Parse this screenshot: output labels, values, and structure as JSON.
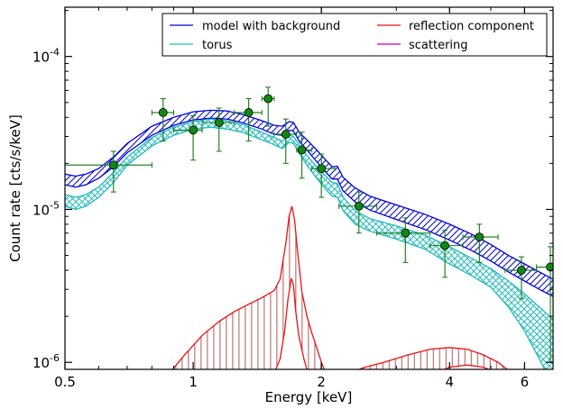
{
  "chart_data": {
    "type": "line",
    "xlabel": "Energy [keV]",
    "ylabel": "Count rate [cts/s/keV]",
    "xscale": "log",
    "yscale": "log",
    "xlim": [
      0.5,
      7.0
    ],
    "ylim": [
      9e-07,
      0.00021
    ],
    "x_ticks": [
      {
        "value": 0.5,
        "label": "0.5"
      },
      {
        "value": 1,
        "label": "1"
      },
      {
        "value": 2,
        "label": "2"
      },
      {
        "value": 4,
        "label": "4"
      },
      {
        "value": 6,
        "label": "6"
      }
    ],
    "y_ticks": [
      {
        "value": 1e-06,
        "base": "10",
        "exp": "-6"
      },
      {
        "value": 1e-05,
        "base": "10",
        "exp": "-5"
      },
      {
        "value": 0.0001,
        "base": "10",
        "exp": "-4"
      }
    ],
    "legend": {
      "placement": "top-right",
      "columns": 2,
      "entries": [
        {
          "label": "model with background",
          "color": "#0000dd"
        },
        {
          "label": "torus",
          "color": "#22bbbb"
        },
        {
          "label": "reflection component",
          "color": "#ee1111"
        },
        {
          "label": "scattering",
          "color": "#bb00bb"
        }
      ]
    },
    "bands": [
      {
        "name": "model with background",
        "color": "#0000dd",
        "hatch": "diagonal",
        "points": [
          [
            0.5,
            1.45e-05,
            1.7e-05
          ],
          [
            0.53,
            1.4e-05,
            1.65e-05
          ],
          [
            0.56,
            1.45e-05,
            1.7e-05
          ],
          [
            0.6,
            1.6e-05,
            1.85e-05
          ],
          [
            0.65,
            1.9e-05,
            2.2e-05
          ],
          [
            0.7,
            2.35e-05,
            2.7e-05
          ],
          [
            0.8,
            3.05e-05,
            3.5e-05
          ],
          [
            0.9,
            3.55e-05,
            4e-05
          ],
          [
            1.0,
            3.85e-05,
            4.35e-05
          ],
          [
            1.1,
            3.95e-05,
            4.45e-05
          ],
          [
            1.2,
            3.9e-05,
            4.4e-05
          ],
          [
            1.3,
            3.7e-05,
            4.2e-05
          ],
          [
            1.45,
            3.35e-05,
            3.8e-05
          ],
          [
            1.55,
            3.1e-05,
            3.55e-05
          ],
          [
            1.62,
            3.05e-05,
            3.5e-05
          ],
          [
            1.68,
            3.3e-05,
            3.75e-05
          ],
          [
            1.72,
            3.25e-05,
            3.7e-05
          ],
          [
            1.78,
            2.75e-05,
            3.15e-05
          ],
          [
            1.85,
            2.45e-05,
            2.85e-05
          ],
          [
            1.95,
            2.05e-05,
            2.45e-05
          ],
          [
            2.05,
            1.75e-05,
            2.1e-05
          ],
          [
            2.12,
            1.58e-05,
            1.9e-05
          ],
          [
            2.18,
            1.58e-05,
            1.92e-05
          ],
          [
            2.25,
            1.32e-05,
            1.62e-05
          ],
          [
            2.4,
            1.12e-05,
            1.38e-05
          ],
          [
            2.6,
            9.9e-06,
            1.22e-05
          ],
          [
            3.0,
            8.6e-06,
            1.07e-05
          ],
          [
            3.5,
            7.4e-06,
            9.3e-06
          ],
          [
            4.0,
            6.3e-06,
            8e-06
          ],
          [
            4.5,
            5.4e-06,
            6.9e-06
          ],
          [
            5.0,
            4.6e-06,
            5.9e-06
          ],
          [
            5.5,
            3.9e-06,
            5e-06
          ],
          [
            6.0,
            3.4e-06,
            4.4e-06
          ],
          [
            6.5,
            3e-06,
            3.9e-06
          ],
          [
            7.0,
            2.7e-06,
            3.5e-06
          ]
        ]
      },
      {
        "name": "torus",
        "color": "#22bbbb",
        "hatch": "cross",
        "points": [
          [
            0.5,
            1.05e-05,
            1.25e-05
          ],
          [
            0.53,
            1e-05,
            1.2e-05
          ],
          [
            0.56,
            1.05e-05,
            1.25e-05
          ],
          [
            0.6,
            1.2e-05,
            1.4e-05
          ],
          [
            0.65,
            1.5e-05,
            1.75e-05
          ],
          [
            0.7,
            1.95e-05,
            2.2e-05
          ],
          [
            0.8,
            2.6e-05,
            2.95e-05
          ],
          [
            0.9,
            3.05e-05,
            3.45e-05
          ],
          [
            1.0,
            3.35e-05,
            3.75e-05
          ],
          [
            1.1,
            3.45e-05,
            3.9e-05
          ],
          [
            1.2,
            3.35e-05,
            3.8e-05
          ],
          [
            1.3,
            3.2e-05,
            3.6e-05
          ],
          [
            1.45,
            2.85e-05,
            3.2e-05
          ],
          [
            1.55,
            2.65e-05,
            2.95e-05
          ],
          [
            1.62,
            2.5e-05,
            2.8e-05
          ],
          [
            1.68,
            2.75e-05,
            3.05e-05
          ],
          [
            1.72,
            2.7e-05,
            3e-05
          ],
          [
            1.78,
            2.3e-05,
            2.6e-05
          ],
          [
            1.85,
            1.95e-05,
            2.25e-05
          ],
          [
            1.95,
            1.6e-05,
            1.9e-05
          ],
          [
            2.05,
            1.35e-05,
            1.65e-05
          ],
          [
            2.12,
            1.22e-05,
            1.5e-05
          ],
          [
            2.18,
            1.2e-05,
            1.48e-05
          ],
          [
            2.25,
            9.8e-06,
            1.2e-05
          ],
          [
            2.4,
            8e-06,
            9.8e-06
          ],
          [
            2.6,
            7.2e-06,
            8.7e-06
          ],
          [
            3.0,
            6.4e-06,
            7.8e-06
          ],
          [
            3.5,
            5.5e-06,
            6.8e-06
          ],
          [
            4.0,
            4.4e-06,
            5.7e-06
          ],
          [
            4.5,
            3.7e-06,
            4.8e-06
          ],
          [
            5.0,
            3.1e-06,
            4.1e-06
          ],
          [
            5.5,
            2.3e-06,
            3.4e-06
          ],
          [
            6.0,
            1.6e-06,
            2.8e-06
          ],
          [
            6.5,
            1.05e-06,
            2.3e-06
          ],
          [
            7.0,
            7e-07,
            1.9e-06
          ]
        ]
      }
    ],
    "reflection": {
      "name": "reflection component",
      "color": "#ee1111",
      "hatch_color": "#aa4444",
      "upper": [
        [
          0.88,
          8.5e-07
        ],
        [
          0.95,
          1.1e-06
        ],
        [
          1.05,
          1.5e-06
        ],
        [
          1.15,
          1.85e-06
        ],
        [
          1.25,
          2.15e-06
        ],
        [
          1.35,
          2.4e-06
        ],
        [
          1.45,
          2.65e-06
        ],
        [
          1.55,
          2.95e-06
        ],
        [
          1.6,
          3.5e-06
        ],
        [
          1.65,
          6e-06
        ],
        [
          1.68,
          9e-06
        ],
        [
          1.705,
          1.05e-05
        ],
        [
          1.73,
          8.5e-06
        ],
        [
          1.76,
          5.2e-06
        ],
        [
          1.8,
          2.9e-06
        ],
        [
          1.85,
          2e-06
        ],
        [
          1.9,
          1.55e-06
        ],
        [
          1.95,
          1.25e-06
        ],
        [
          2.0,
          1e-06
        ],
        [
          2.05,
          8.5e-07
        ]
      ],
      "lower": [
        [
          1.55,
          8.5e-07
        ],
        [
          1.6,
          1.05e-06
        ],
        [
          1.64,
          1.6e-06
        ],
        [
          1.67,
          2.6e-06
        ],
        [
          1.7,
          3.55e-06
        ],
        [
          1.72,
          3.2e-06
        ],
        [
          1.74,
          2.2e-06
        ],
        [
          1.77,
          1.5e-06
        ],
        [
          1.82,
          1.05e-06
        ],
        [
          1.86,
          8.5e-07
        ]
      ],
      "upper2": [
        [
          2.35,
          8.5e-07
        ],
        [
          2.5,
          9.2e-07
        ],
        [
          2.8,
          1e-06
        ],
        [
          3.2,
          1.12e-06
        ],
        [
          3.6,
          1.22e-06
        ],
        [
          4.0,
          1.25e-06
        ],
        [
          4.4,
          1.22e-06
        ],
        [
          4.8,
          1.12e-06
        ],
        [
          5.2,
          1e-06
        ],
        [
          5.6,
          8.5e-07
        ]
      ],
      "lower2": [
        [
          3.7,
          8.5e-07
        ],
        [
          4.0,
          9.3e-07
        ],
        [
          4.4,
          9.6e-07
        ],
        [
          4.8,
          9.3e-07
        ],
        [
          5.2,
          8.5e-07
        ]
      ]
    },
    "data_points": {
      "color": "#117711",
      "points": [
        {
          "x": 0.65,
          "y": 1.95e-05,
          "xerr": [
            0.5,
            0.8
          ],
          "yerr": [
            1.3e-05,
            2.4e-05
          ]
        },
        {
          "x": 0.85,
          "y": 4.3e-05,
          "xerr": [
            0.8,
            0.9
          ],
          "yerr": [
            2.8e-05,
            5.3e-05
          ]
        },
        {
          "x": 1.0,
          "y": 3.3e-05,
          "xerr": [
            0.9,
            1.05
          ],
          "yerr": [
            2.1e-05,
            4.1e-05
          ]
        },
        {
          "x": 1.15,
          "y": 3.7e-05,
          "xerr": [
            1.05,
            1.25
          ],
          "yerr": [
            2.4e-05,
            4.6e-05
          ]
        },
        {
          "x": 1.35,
          "y": 4.3e-05,
          "xerr": [
            1.25,
            1.45
          ],
          "yerr": [
            2.8e-05,
            5.3e-05
          ]
        },
        {
          "x": 1.5,
          "y": 5.3e-05,
          "xerr": [
            1.45,
            1.55
          ],
          "yerr": [
            3.5e-05,
            6.3e-05
          ]
        },
        {
          "x": 1.65,
          "y": 3.1e-05,
          "xerr": [
            1.55,
            1.75
          ],
          "yerr": [
            2e-05,
            3.9e-05
          ]
        },
        {
          "x": 1.8,
          "y": 2.45e-05,
          "xerr": [
            1.75,
            1.9
          ],
          "yerr": [
            1.6e-05,
            3.2e-05
          ]
        },
        {
          "x": 2.0,
          "y": 1.85e-05,
          "xerr": [
            1.9,
            2.15
          ],
          "yerr": [
            1.2e-05,
            2.3e-05
          ]
        },
        {
          "x": 2.45,
          "y": 1.05e-05,
          "xerr": [
            2.2,
            2.7
          ],
          "yerr": [
            7e-06,
            1.3e-05
          ]
        },
        {
          "x": 3.15,
          "y": 7e-06,
          "xerr": [
            2.7,
            3.6
          ],
          "yerr": [
            4.5e-06,
            8.8e-06
          ]
        },
        {
          "x": 3.9,
          "y": 5.8e-06,
          "xerr": [
            3.6,
            4.3
          ],
          "yerr": [
            3.6e-06,
            7.3e-06
          ]
        },
        {
          "x": 4.7,
          "y": 6.6e-06,
          "xerr": [
            4.3,
            5.2
          ],
          "yerr": [
            4.5e-06,
            8e-06
          ]
        },
        {
          "x": 5.9,
          "y": 4e-06,
          "xerr": [
            5.4,
            6.4
          ],
          "yerr": [
            2.6e-06,
            4.9e-06
          ]
        },
        {
          "x": 6.9,
          "y": 4.2e-06,
          "xerr": [
            6.4,
            7.0
          ],
          "yerr": [
            1e-06,
            5.7e-06
          ]
        }
      ]
    }
  }
}
